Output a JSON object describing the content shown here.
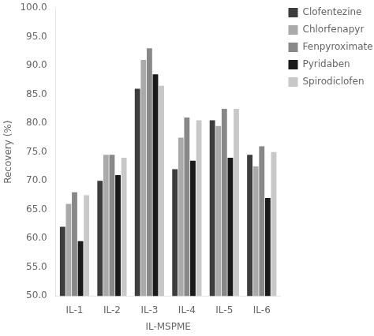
{
  "chart_data": {
    "type": "bar",
    "categories": [
      "IL-1",
      "IL-2",
      "IL-3",
      "IL-4",
      "IL-5",
      "IL-6"
    ],
    "series": [
      {
        "name": "Clofentezine",
        "color": "#3d3d3d",
        "values": [
          62.0,
          70.0,
          86.0,
          72.0,
          80.5,
          74.5
        ]
      },
      {
        "name": "Chlorfenapyr",
        "color": "#aaaaaa",
        "values": [
          66.0,
          74.5,
          91.0,
          77.5,
          79.5,
          72.5
        ]
      },
      {
        "name": "Fenpyroximate",
        "color": "#888888",
        "values": [
          68.0,
          74.5,
          93.0,
          81.0,
          82.5,
          76.0
        ]
      },
      {
        "name": "Pyridaben",
        "color": "#1a1a1a",
        "values": [
          59.5,
          71.0,
          88.5,
          73.5,
          74.0,
          67.0
        ]
      },
      {
        "name": "Spirodiclofen",
        "color": "#c8c8c8",
        "values": [
          67.5,
          74.0,
          86.5,
          80.5,
          82.5,
          75.0
        ]
      }
    ],
    "xlabel": "IL-MSPME",
    "ylabel": "Recovery (%)",
    "ylim": [
      50.0,
      100.0
    ],
    "yticks": [
      {
        "value": 50,
        "label": "50.0"
      },
      {
        "value": 55,
        "label": "55.0"
      },
      {
        "value": 60,
        "label": "60.0"
      },
      {
        "value": 65,
        "label": "65.0"
      },
      {
        "value": 70,
        "label": "70.0"
      },
      {
        "value": 75,
        "label": "75.0"
      },
      {
        "value": 80,
        "label": "80.0"
      },
      {
        "value": 85,
        "label": "85.0"
      },
      {
        "value": 90,
        "label": "90.0"
      },
      {
        "value": 95,
        "label": "95.0"
      },
      {
        "value": 100,
        "label": "100.0"
      }
    ],
    "grid": false,
    "legend": "right"
  }
}
